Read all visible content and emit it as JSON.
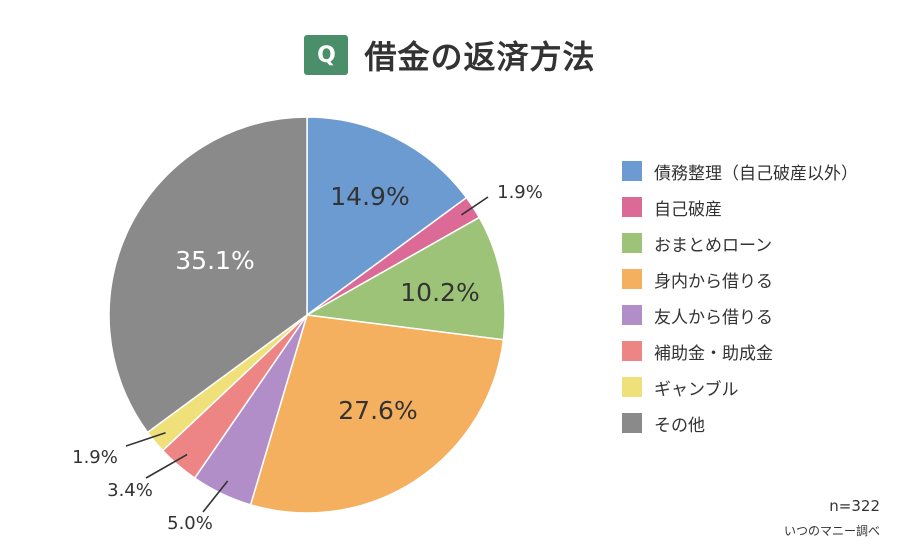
{
  "header": {
    "badge": "Q",
    "badge_color": "#4a8f6a",
    "title": "借金の返済方法"
  },
  "chart_data": {
    "type": "pie",
    "title": "借金の返済方法",
    "start_angle_deg": 0,
    "direction": "clockwise",
    "categories": [
      "債務整理（自己破産以外）",
      "自己破産",
      "おまとめローン",
      "身内から借りる",
      "友人から借りる",
      "補助金・助成金",
      "ギャンブル",
      "その他"
    ],
    "values": [
      14.9,
      1.9,
      10.2,
      27.6,
      5.0,
      3.4,
      1.9,
      35.1
    ],
    "labels": [
      "14.9%",
      "1.9%",
      "10.2%",
      "27.6%",
      "5.0%",
      "3.4%",
      "1.9%",
      "35.1%"
    ],
    "colors": [
      "#6b9bd1",
      "#dc6a96",
      "#9dc378",
      "#f4b05f",
      "#b18ec8",
      "#ec8583",
      "#f0e07a",
      "#8a8a8a"
    ],
    "label_colors": [
      "#333333",
      "#333333",
      "#333333",
      "#333333",
      "#333333",
      "#333333",
      "#333333",
      "#ffffff"
    ],
    "legend": "right"
  },
  "footer": {
    "sample": "n=322",
    "source": "いつのマニー調べ"
  }
}
